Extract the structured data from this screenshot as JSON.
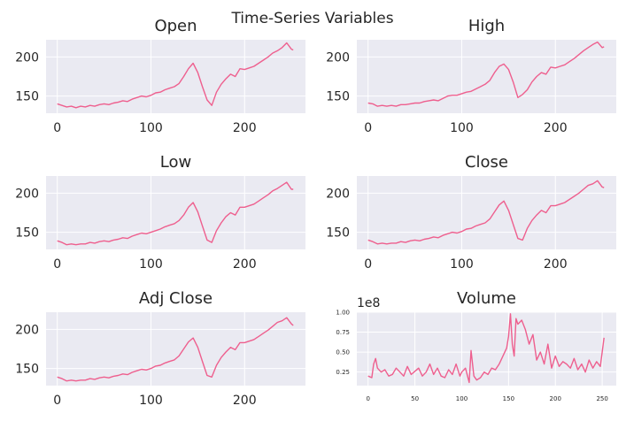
{
  "figure": {
    "title": "Time-Series Variables"
  },
  "style": {
    "line_color": "#ee5f8e",
    "plot_bg": "#eaeaf2",
    "grid_color": "#ffffff"
  },
  "chart_data": [
    {
      "type": "line",
      "title": "Open",
      "xlabel": "",
      "ylabel": "",
      "xlim": [
        -12,
        265
      ],
      "ylim": [
        128,
        222
      ],
      "xticks": [
        0,
        100,
        200
      ],
      "yticks": [
        150,
        200
      ],
      "grid": true,
      "x": [
        0,
        5,
        10,
        15,
        20,
        25,
        30,
        35,
        40,
        45,
        50,
        55,
        60,
        65,
        70,
        75,
        80,
        85,
        90,
        95,
        100,
        105,
        110,
        115,
        120,
        125,
        130,
        135,
        140,
        145,
        150,
        155,
        160,
        165,
        170,
        175,
        180,
        185,
        190,
        195,
        200,
        205,
        210,
        215,
        220,
        225,
        230,
        235,
        240,
        245,
        250,
        252
      ],
      "values": [
        140,
        138,
        136,
        137,
        135,
        137,
        136,
        138,
        137,
        139,
        140,
        139,
        141,
        142,
        144,
        143,
        146,
        148,
        150,
        149,
        151,
        154,
        155,
        158,
        160,
        162,
        166,
        175,
        185,
        192,
        180,
        162,
        145,
        138,
        155,
        165,
        172,
        178,
        175,
        185,
        184,
        186,
        188,
        192,
        196,
        200,
        205,
        208,
        212,
        218,
        210,
        209
      ]
    },
    {
      "type": "line",
      "title": "High",
      "xlabel": "",
      "ylabel": "",
      "xlim": [
        -12,
        265
      ],
      "ylim": [
        128,
        222
      ],
      "xticks": [
        0,
        100,
        200
      ],
      "yticks": [
        150,
        200
      ],
      "grid": true,
      "x": [
        0,
        5,
        10,
        15,
        20,
        25,
        30,
        35,
        40,
        45,
        50,
        55,
        60,
        65,
        70,
        75,
        80,
        85,
        90,
        95,
        100,
        105,
        110,
        115,
        120,
        125,
        130,
        135,
        140,
        145,
        150,
        155,
        160,
        165,
        170,
        175,
        180,
        185,
        190,
        195,
        200,
        205,
        210,
        215,
        220,
        225,
        230,
        235,
        240,
        245,
        250,
        252
      ],
      "values": [
        141,
        140,
        137,
        138,
        137,
        138,
        137,
        139,
        139,
        140,
        141,
        141,
        143,
        144,
        145,
        144,
        147,
        150,
        151,
        151,
        153,
        155,
        156,
        159,
        162,
        165,
        170,
        180,
        188,
        191,
        184,
        168,
        148,
        152,
        158,
        168,
        175,
        180,
        178,
        187,
        186,
        188,
        190,
        194,
        198,
        203,
        208,
        212,
        216,
        219,
        212,
        213
      ]
    },
    {
      "type": "line",
      "title": "Low",
      "xlabel": "",
      "ylabel": "",
      "xlim": [
        -12,
        265
      ],
      "ylim": [
        128,
        222
      ],
      "xticks": [
        0,
        100,
        200
      ],
      "yticks": [
        150,
        200
      ],
      "grid": true,
      "x": [
        0,
        5,
        10,
        15,
        20,
        25,
        30,
        35,
        40,
        45,
        50,
        55,
        60,
        65,
        70,
        75,
        80,
        85,
        90,
        95,
        100,
        105,
        110,
        115,
        120,
        125,
        130,
        135,
        140,
        145,
        150,
        155,
        160,
        165,
        170,
        175,
        180,
        185,
        190,
        195,
        200,
        205,
        210,
        215,
        220,
        225,
        230,
        235,
        240,
        245,
        250,
        252
      ],
      "values": [
        139,
        137,
        134,
        135,
        134,
        135,
        135,
        137,
        136,
        138,
        139,
        138,
        140,
        141,
        143,
        142,
        145,
        147,
        149,
        148,
        150,
        152,
        154,
        157,
        159,
        161,
        165,
        172,
        182,
        188,
        176,
        158,
        140,
        137,
        152,
        162,
        170,
        175,
        172,
        182,
        182,
        184,
        186,
        190,
        194,
        198,
        203,
        206,
        210,
        214,
        205,
        205
      ]
    },
    {
      "type": "line",
      "title": "Close",
      "xlabel": "",
      "ylabel": "",
      "xlim": [
        -12,
        265
      ],
      "ylim": [
        128,
        222
      ],
      "xticks": [
        0,
        100,
        200
      ],
      "yticks": [
        150,
        200
      ],
      "grid": true,
      "x": [
        0,
        5,
        10,
        15,
        20,
        25,
        30,
        35,
        40,
        45,
        50,
        55,
        60,
        65,
        70,
        75,
        80,
        85,
        90,
        95,
        100,
        105,
        110,
        115,
        120,
        125,
        130,
        135,
        140,
        145,
        150,
        155,
        160,
        165,
        170,
        175,
        180,
        185,
        190,
        195,
        200,
        205,
        210,
        215,
        220,
        225,
        230,
        235,
        240,
        245,
        250,
        252
      ],
      "values": [
        140,
        138,
        135,
        136,
        135,
        136,
        136,
        138,
        137,
        139,
        140,
        139,
        141,
        142,
        144,
        143,
        146,
        148,
        150,
        149,
        151,
        154,
        155,
        158,
        160,
        162,
        167,
        176,
        185,
        190,
        178,
        160,
        142,
        140,
        155,
        165,
        172,
        178,
        175,
        184,
        184,
        186,
        188,
        192,
        196,
        200,
        205,
        210,
        212,
        216,
        208,
        207
      ]
    },
    {
      "type": "line",
      "title": "Adj Close",
      "xlabel": "",
      "ylabel": "",
      "xlim": [
        -12,
        265
      ],
      "ylim": [
        128,
        222
      ],
      "xticks": [
        0,
        100,
        200
      ],
      "yticks": [
        150,
        200
      ],
      "grid": true,
      "x": [
        0,
        5,
        10,
        15,
        20,
        25,
        30,
        35,
        40,
        45,
        50,
        55,
        60,
        65,
        70,
        75,
        80,
        85,
        90,
        95,
        100,
        105,
        110,
        115,
        120,
        125,
        130,
        135,
        140,
        145,
        150,
        155,
        160,
        165,
        170,
        175,
        180,
        185,
        190,
        195,
        200,
        205,
        210,
        215,
        220,
        225,
        230,
        235,
        240,
        245,
        250,
        252
      ],
      "values": [
        139,
        137,
        134,
        135,
        134,
        135,
        135,
        137,
        136,
        138,
        139,
        138,
        140,
        141,
        143,
        142,
        145,
        147,
        149,
        148,
        150,
        153,
        154,
        157,
        159,
        161,
        166,
        175,
        184,
        189,
        177,
        159,
        141,
        139,
        154,
        164,
        171,
        177,
        174,
        183,
        183,
        185,
        187,
        191,
        195,
        199,
        204,
        209,
        211,
        215,
        207,
        205
      ]
    },
    {
      "type": "line",
      "title": "Volume",
      "xlabel": "",
      "ylabel": "",
      "offset_label": "1e8",
      "xlim": [
        -12,
        265
      ],
      "ylim": [
        0.08,
        1.0
      ],
      "xticks": [
        0,
        50,
        100,
        150,
        200,
        250
      ],
      "yticks": [
        0.25,
        0.5,
        0.75,
        1.0
      ],
      "ytick_labels": [
        "0.25",
        "0.50",
        "0.75",
        "1.00"
      ],
      "grid": true,
      "x": [
        0,
        4,
        6,
        8,
        10,
        14,
        18,
        22,
        26,
        30,
        34,
        38,
        42,
        46,
        50,
        54,
        58,
        62,
        66,
        70,
        74,
        78,
        82,
        86,
        90,
        94,
        98,
        100,
        104,
        108,
        110,
        113,
        116,
        120,
        124,
        128,
        132,
        136,
        140,
        144,
        148,
        150,
        152,
        154,
        156,
        158,
        160,
        164,
        168,
        172,
        176,
        180,
        184,
        188,
        192,
        196,
        200,
        204,
        208,
        212,
        216,
        220,
        224,
        228,
        232,
        236,
        240,
        244,
        248,
        250,
        252
      ],
      "values": [
        0.2,
        0.18,
        0.35,
        0.42,
        0.3,
        0.25,
        0.28,
        0.2,
        0.22,
        0.3,
        0.25,
        0.2,
        0.32,
        0.22,
        0.26,
        0.3,
        0.2,
        0.25,
        0.35,
        0.22,
        0.3,
        0.2,
        0.18,
        0.28,
        0.22,
        0.35,
        0.2,
        0.25,
        0.3,
        0.12,
        0.52,
        0.2,
        0.15,
        0.18,
        0.25,
        0.22,
        0.3,
        0.28,
        0.35,
        0.45,
        0.55,
        0.7,
        0.98,
        0.6,
        0.45,
        0.92,
        0.85,
        0.9,
        0.78,
        0.6,
        0.72,
        0.4,
        0.5,
        0.35,
        0.6,
        0.3,
        0.45,
        0.32,
        0.38,
        0.35,
        0.3,
        0.42,
        0.28,
        0.35,
        0.25,
        0.4,
        0.3,
        0.38,
        0.32,
        0.5,
        0.68
      ]
    }
  ]
}
